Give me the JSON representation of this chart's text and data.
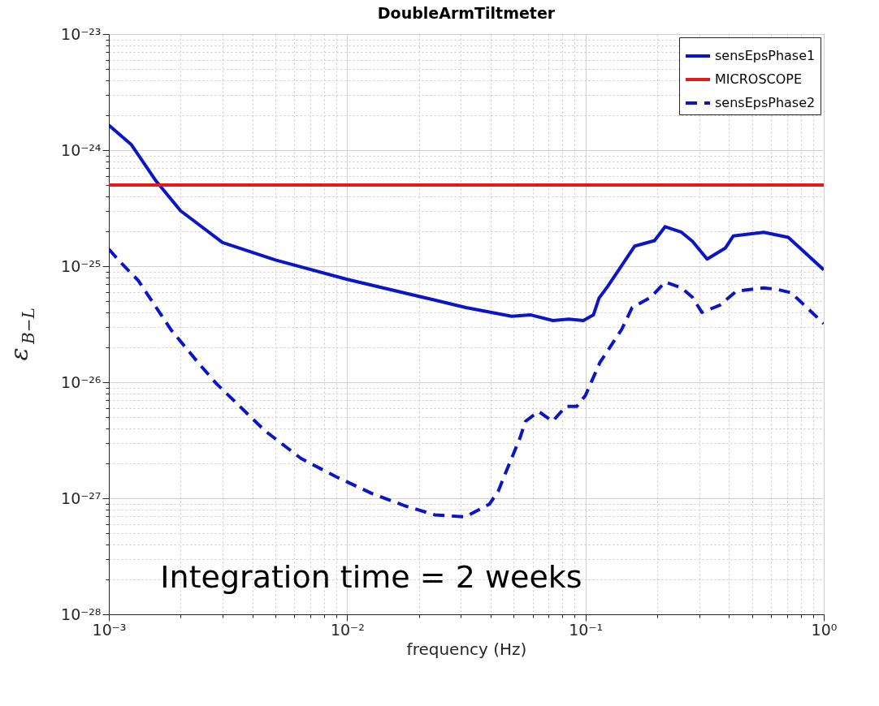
{
  "chart_data": {
    "type": "line",
    "title": "DoubleArmTiltmeter",
    "xlabel": "frequency (Hz)",
    "ylabel": "ε$_{B−L}$",
    "log": "xy",
    "grid": true,
    "legend": "top right",
    "xlim": [
      0.001,
      1
    ],
    "ylim": [
      1e-28,
      1e-23
    ],
    "xticks": [
      {
        "value": 0.001,
        "label": "10⁻³"
      },
      {
        "value": 0.002,
        "label": null
      },
      {
        "value": 0.003,
        "label": null
      },
      {
        "value": 0.004,
        "label": null
      },
      {
        "value": 0.005,
        "label": null
      },
      {
        "value": 0.006,
        "label": null
      },
      {
        "value": 0.007,
        "label": null
      },
      {
        "value": 0.008,
        "label": null
      },
      {
        "value": 0.009,
        "label": null
      },
      {
        "value": 0.01,
        "label": "10⁻²"
      },
      {
        "value": 0.02,
        "label": null
      },
      {
        "value": 0.03,
        "label": null
      },
      {
        "value": 0.04,
        "label": null
      },
      {
        "value": 0.05,
        "label": null
      },
      {
        "value": 0.06,
        "label": null
      },
      {
        "value": 0.07,
        "label": null
      },
      {
        "value": 0.08,
        "label": null
      },
      {
        "value": 0.09,
        "label": null
      },
      {
        "value": 0.1,
        "label": "10⁻¹"
      },
      {
        "value": 0.2,
        "label": null
      },
      {
        "value": 0.3,
        "label": null
      },
      {
        "value": 0.4,
        "label": null
      },
      {
        "value": 0.5,
        "label": null
      },
      {
        "value": 0.6,
        "label": null
      },
      {
        "value": 0.7,
        "label": null
      },
      {
        "value": 0.8,
        "label": null
      },
      {
        "value": 0.9,
        "label": null
      },
      {
        "value": 1,
        "label": "10⁰"
      }
    ],
    "yticks": [
      {
        "value": 1e-28,
        "label": "10⁻²⁸"
      },
      {
        "value": 2e-28,
        "label": null
      },
      {
        "value": 3e-28,
        "label": null
      },
      {
        "value": 4e-28,
        "label": null
      },
      {
        "value": 5e-28,
        "label": null
      },
      {
        "value": 6e-28,
        "label": null
      },
      {
        "value": 7e-28,
        "label": null
      },
      {
        "value": 8e-28,
        "label": null
      },
      {
        "value": 9e-28,
        "label": null
      },
      {
        "value": 1e-27,
        "label": "10⁻²⁷"
      },
      {
        "value": 2e-27,
        "label": null
      },
      {
        "value": 3e-27,
        "label": null
      },
      {
        "value": 4e-27,
        "label": null
      },
      {
        "value": 5e-27,
        "label": null
      },
      {
        "value": 6e-27,
        "label": null
      },
      {
        "value": 7e-27,
        "label": null
      },
      {
        "value": 8e-27,
        "label": null
      },
      {
        "value": 9e-27,
        "label": null
      },
      {
        "value": 1e-26,
        "label": "10⁻²⁶"
      },
      {
        "value": 2e-26,
        "label": null
      },
      {
        "value": 3e-26,
        "label": null
      },
      {
        "value": 4e-26,
        "label": null
      },
      {
        "value": 5e-26,
        "label": null
      },
      {
        "value": 6e-26,
        "label": null
      },
      {
        "value": 7e-26,
        "label": null
      },
      {
        "value": 8e-26,
        "label": null
      },
      {
        "value": 9e-26,
        "label": null
      },
      {
        "value": 1e-25,
        "label": "10⁻²⁵"
      },
      {
        "value": 2e-25,
        "label": null
      },
      {
        "value": 3e-25,
        "label": null
      },
      {
        "value": 4e-25,
        "label": null
      },
      {
        "value": 5e-25,
        "label": null
      },
      {
        "value": 6e-25,
        "label": null
      },
      {
        "value": 7e-25,
        "label": null
      },
      {
        "value": 8e-25,
        "label": null
      },
      {
        "value": 9e-25,
        "label": null
      },
      {
        "value": 1e-24,
        "label": "10⁻²⁴"
      },
      {
        "value": 2e-24,
        "label": null
      },
      {
        "value": 3e-24,
        "label": null
      },
      {
        "value": 4e-24,
        "label": null
      },
      {
        "value": 5e-24,
        "label": null
      },
      {
        "value": 6e-24,
        "label": null
      },
      {
        "value": 7e-24,
        "label": null
      },
      {
        "value": 8e-24,
        "label": null
      },
      {
        "value": 9e-24,
        "label": null
      },
      {
        "value": 1e-23,
        "label": "10⁻²³"
      }
    ],
    "series": [
      {
        "name": "sensEpsPhase1",
        "color": "#0a14c8",
        "line_style": "solid",
        "x": [
          0.001,
          0.00124,
          0.00158,
          0.002,
          0.003,
          0.005,
          0.01,
          0.0233,
          0.0315,
          0.049,
          0.059,
          0.073,
          0.085,
          0.098,
          0.108,
          0.114,
          0.124,
          0.145,
          0.161,
          0.195,
          0.216,
          0.253,
          0.281,
          0.324,
          0.386,
          0.417,
          0.56,
          0.71,
          1
        ],
        "values": [
          1.64e-24,
          1.12e-24,
          5.4e-25,
          3e-25,
          1.6e-25,
          1.13e-25,
          7.7e-26,
          5.1e-26,
          4.4e-26,
          3.7e-26,
          3.8e-26,
          3.4e-26,
          3.5e-26,
          3.4e-26,
          3.8e-26,
          5.3e-26,
          6.7e-26,
          1.08e-25,
          1.49e-25,
          1.66e-25,
          2.19e-25,
          1.96e-25,
          1.64e-25,
          1.15e-25,
          1.43e-25,
          1.82e-25,
          1.96e-25,
          1.77e-25,
          9.3e-26
        ]
      },
      {
        "name": "MICROSCOPE",
        "color": "#e41a1a",
        "line_style": "solid",
        "x": [
          0.001,
          1
        ],
        "values": [
          5e-25,
          5e-25
        ]
      },
      {
        "name": "sensEpsPhase2",
        "color": "#0a14c8",
        "line_style": "dashed",
        "x": [
          0.001,
          0.00111,
          0.00133,
          0.00183,
          0.00242,
          0.00283,
          0.00453,
          0.00641,
          0.00906,
          0.0127,
          0.0175,
          0.0233,
          0.0313,
          0.0395,
          0.043,
          0.0463,
          0.0531,
          0.056,
          0.0636,
          0.0728,
          0.0828,
          0.092,
          0.1,
          0.115,
          0.142,
          0.157,
          0.188,
          0.216,
          0.253,
          0.281,
          0.308,
          0.366,
          0.43,
          0.56,
          0.64,
          0.73,
          1
        ],
        "values": [
          1.4e-25,
          1.1e-25,
          7.5e-26,
          2.8e-26,
          1.4e-26,
          9.7e-27,
          3.8e-27,
          2.2e-27,
          1.52e-27,
          1.1e-27,
          8.6e-28,
          7.2e-28,
          6.9e-28,
          8.9e-28,
          1.14e-27,
          1.67e-27,
          3.3e-27,
          4.6e-27,
          5.6e-27,
          4.6e-27,
          6.2e-27,
          6.2e-27,
          7.7e-27,
          1.48e-26,
          2.86e-26,
          4.4e-26,
          5.4e-26,
          7.3e-26,
          6.5e-26,
          5.4e-26,
          4e-26,
          4.6e-26,
          6.1e-26,
          6.5e-26,
          6.3e-26,
          5.9e-26,
          3.2e-26
        ]
      }
    ],
    "annotations": [
      "Integration time = 2 weeks"
    ]
  }
}
